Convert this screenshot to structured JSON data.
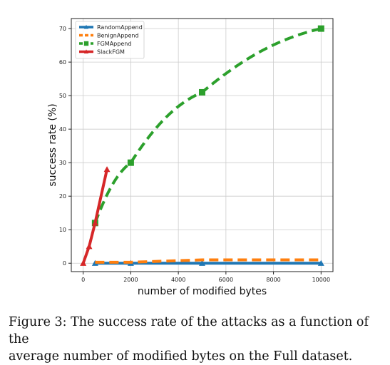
{
  "chart_data": {
    "type": "line",
    "xlabel": "number of modified bytes",
    "ylabel": "success rate (%)",
    "xlim": [
      -500,
      10500
    ],
    "ylim": [
      -2.5,
      73
    ],
    "xticks": [
      0,
      2000,
      4000,
      6000,
      8000,
      10000
    ],
    "yticks": [
      0,
      10,
      20,
      30,
      40,
      50,
      60,
      70
    ],
    "grid": true,
    "legend_position": "top-left",
    "series": [
      {
        "name": "RandomAppend",
        "color": "#1f77b4",
        "marker": "triangle",
        "linestyle": "solid",
        "x": [
          500,
          2000,
          5000,
          10000
        ],
        "y": [
          0,
          0,
          0,
          0
        ]
      },
      {
        "name": "BenignAppend",
        "color": "#ff7f0e",
        "marker": "none",
        "linestyle": "dashed",
        "x": [
          500,
          2000,
          5000,
          10000
        ],
        "y": [
          0.3,
          0.3,
          1,
          1
        ]
      },
      {
        "name": "FGMAppend",
        "color": "#2ca02c",
        "marker": "square",
        "linestyle": "dashed",
        "x": [
          500,
          2000,
          5000,
          10000
        ],
        "y": [
          12,
          30,
          51,
          70
        ]
      },
      {
        "name": "SlackFGM",
        "color": "#d62728",
        "marker": "triangle",
        "linestyle": "solid",
        "x": [
          0,
          250,
          500,
          1000
        ],
        "y": [
          0,
          5,
          12,
          28
        ]
      }
    ]
  },
  "caption": {
    "line1": "Figure 3: The success rate of the attacks as a function of the",
    "line2": "average number of modified bytes on the Full dataset."
  }
}
